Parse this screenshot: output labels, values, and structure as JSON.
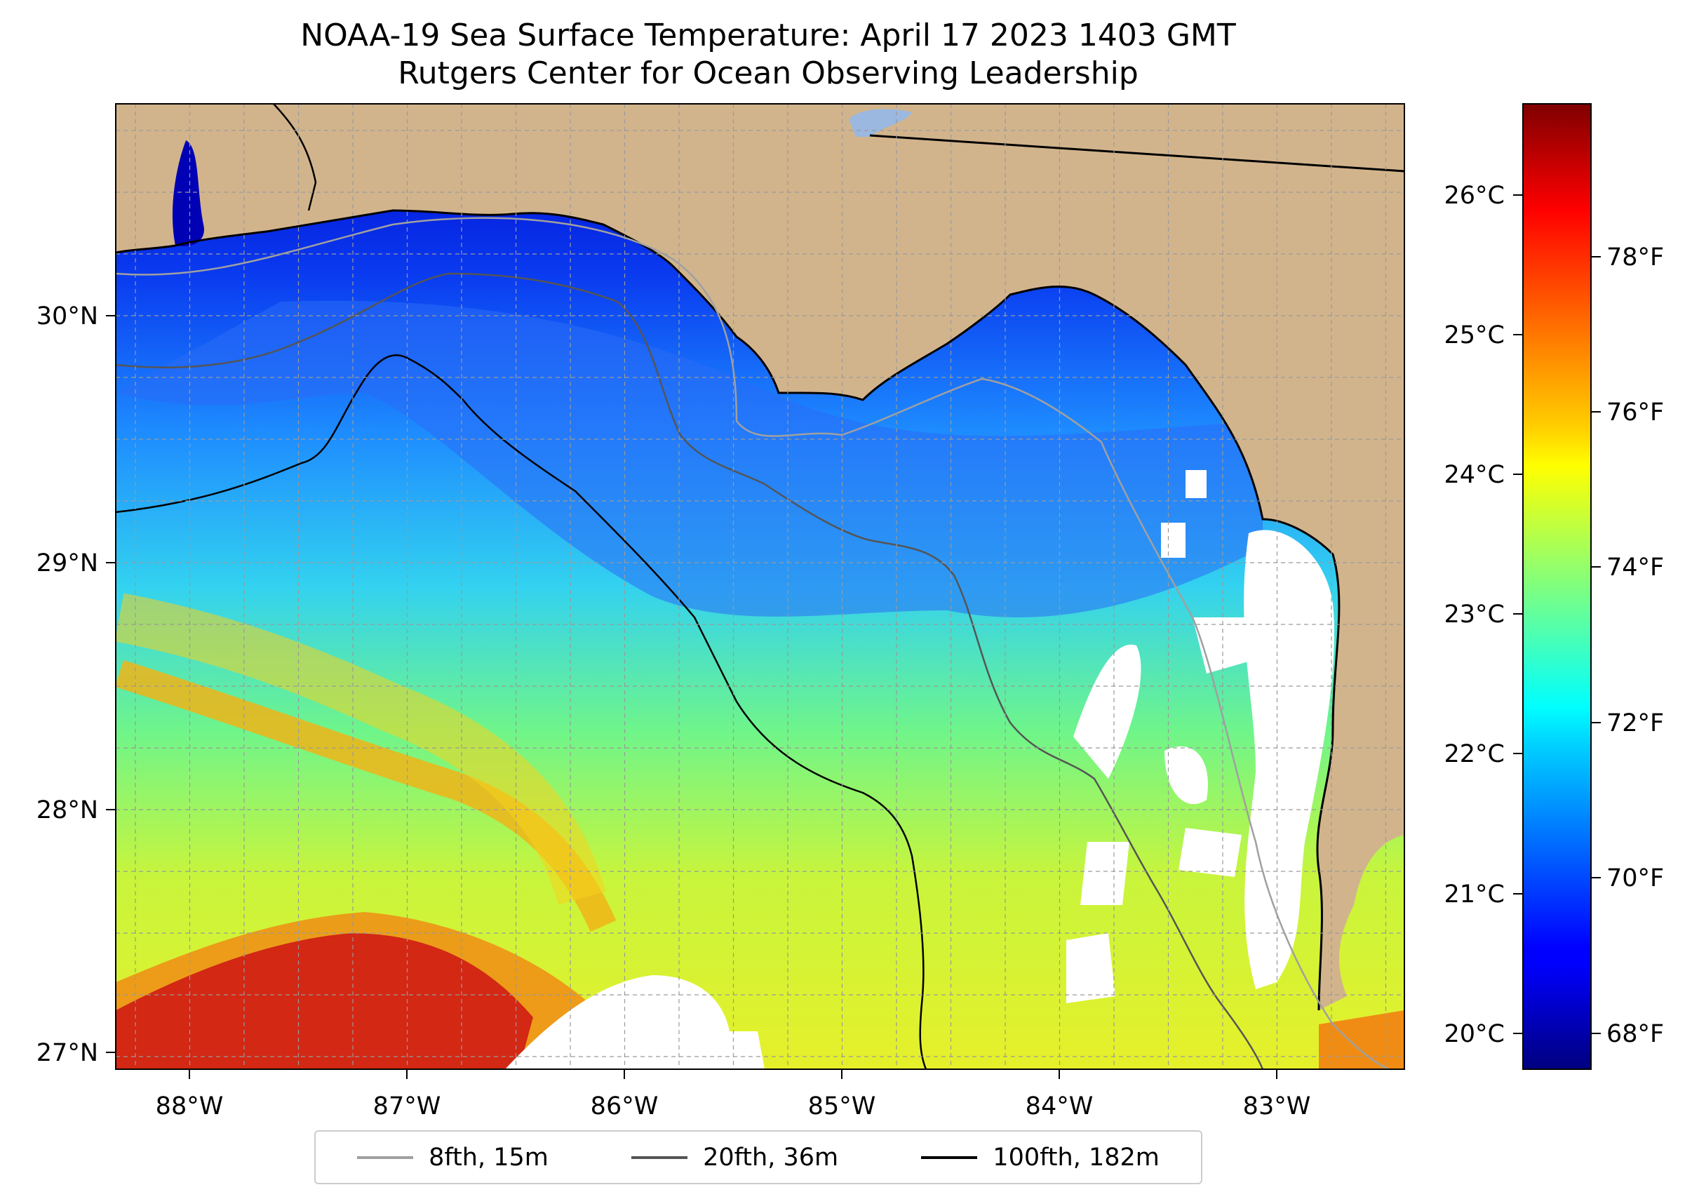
{
  "map": {
    "title": "NOAA-19 Sea Surface Temperature: April 17 2023 1403 GMT",
    "subtitle": "Rutgers Center for Ocean Observing Leadership",
    "longitude_ticks": [
      "88°W",
      "87°W",
      "86°W",
      "85°W",
      "84°W",
      "83°W"
    ],
    "latitude_ticks": [
      "30°N",
      "29°N",
      "28°N",
      "27°N"
    ],
    "land_color": "#d2b48c",
    "cloud_color": "#ffffff"
  },
  "colorbar": {
    "colormap": "jet",
    "celsius_ticks": [
      "26°C",
      "25°C",
      "24°C",
      "23°C",
      "22°C",
      "21°C",
      "20°C"
    ],
    "fahrenheit_ticks": [
      "78°F",
      "76°F",
      "74°F",
      "72°F",
      "70°F",
      "68°F"
    ]
  },
  "legend": {
    "items": [
      {
        "label": "8fth, 15m",
        "color": "#a0a0a0"
      },
      {
        "label": "20fth, 36m",
        "color": "#555555"
      },
      {
        "label": "100fth, 182m",
        "color": "#000000"
      }
    ]
  }
}
